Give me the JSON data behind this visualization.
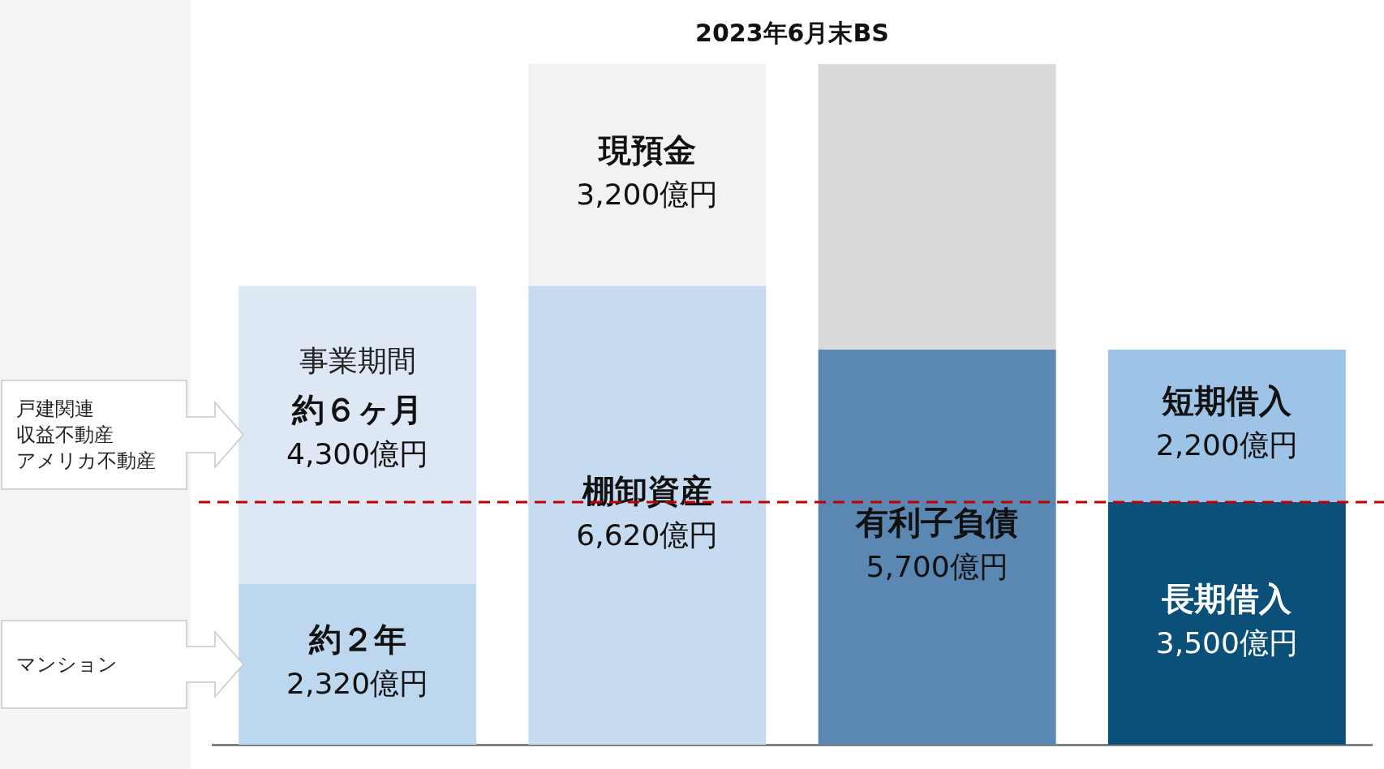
{
  "chart_data": {
    "type": "bar",
    "stacked": true,
    "title": "2023年6月末BS",
    "categories": [
      null,
      null,
      null,
      null
    ],
    "series": [
      {
        "colors": [
          "#bdd7ee",
          "#c6dbef",
          "#5b87b3",
          "#0b5078"
        ],
        "values": [
          2320,
          6620,
          5700,
          3500
        ],
        "value_labels": [
          "約２年\n2,320億円",
          "棚卸資産\n6,620億円",
          "有利子負債\n5,700億円",
          "長期借入\n3,500億円"
        ]
      },
      {
        "colors": [
          "#dde8f4",
          "#f2f2f2",
          "#d9d9d9",
          "#9dc3e6"
        ],
        "values": [
          4300,
          3200,
          4120,
          2200
        ],
        "value_labels": [
          "約６ヶ月\n4,300億円",
          "現預金\n3,200億円",
          null,
          "短期借入\n2,200億円"
        ]
      }
    ],
    "ref_lines": [
      {
        "axis": "y",
        "value": 3500,
        "color": "#c00000",
        "line_style": "dashed"
      }
    ],
    "annotations": [
      "事業期間",
      "戸建関連",
      "収益不動産",
      "アメリカ不動産",
      "マンション"
    ],
    "legend": false,
    "grid": false
  }
}
